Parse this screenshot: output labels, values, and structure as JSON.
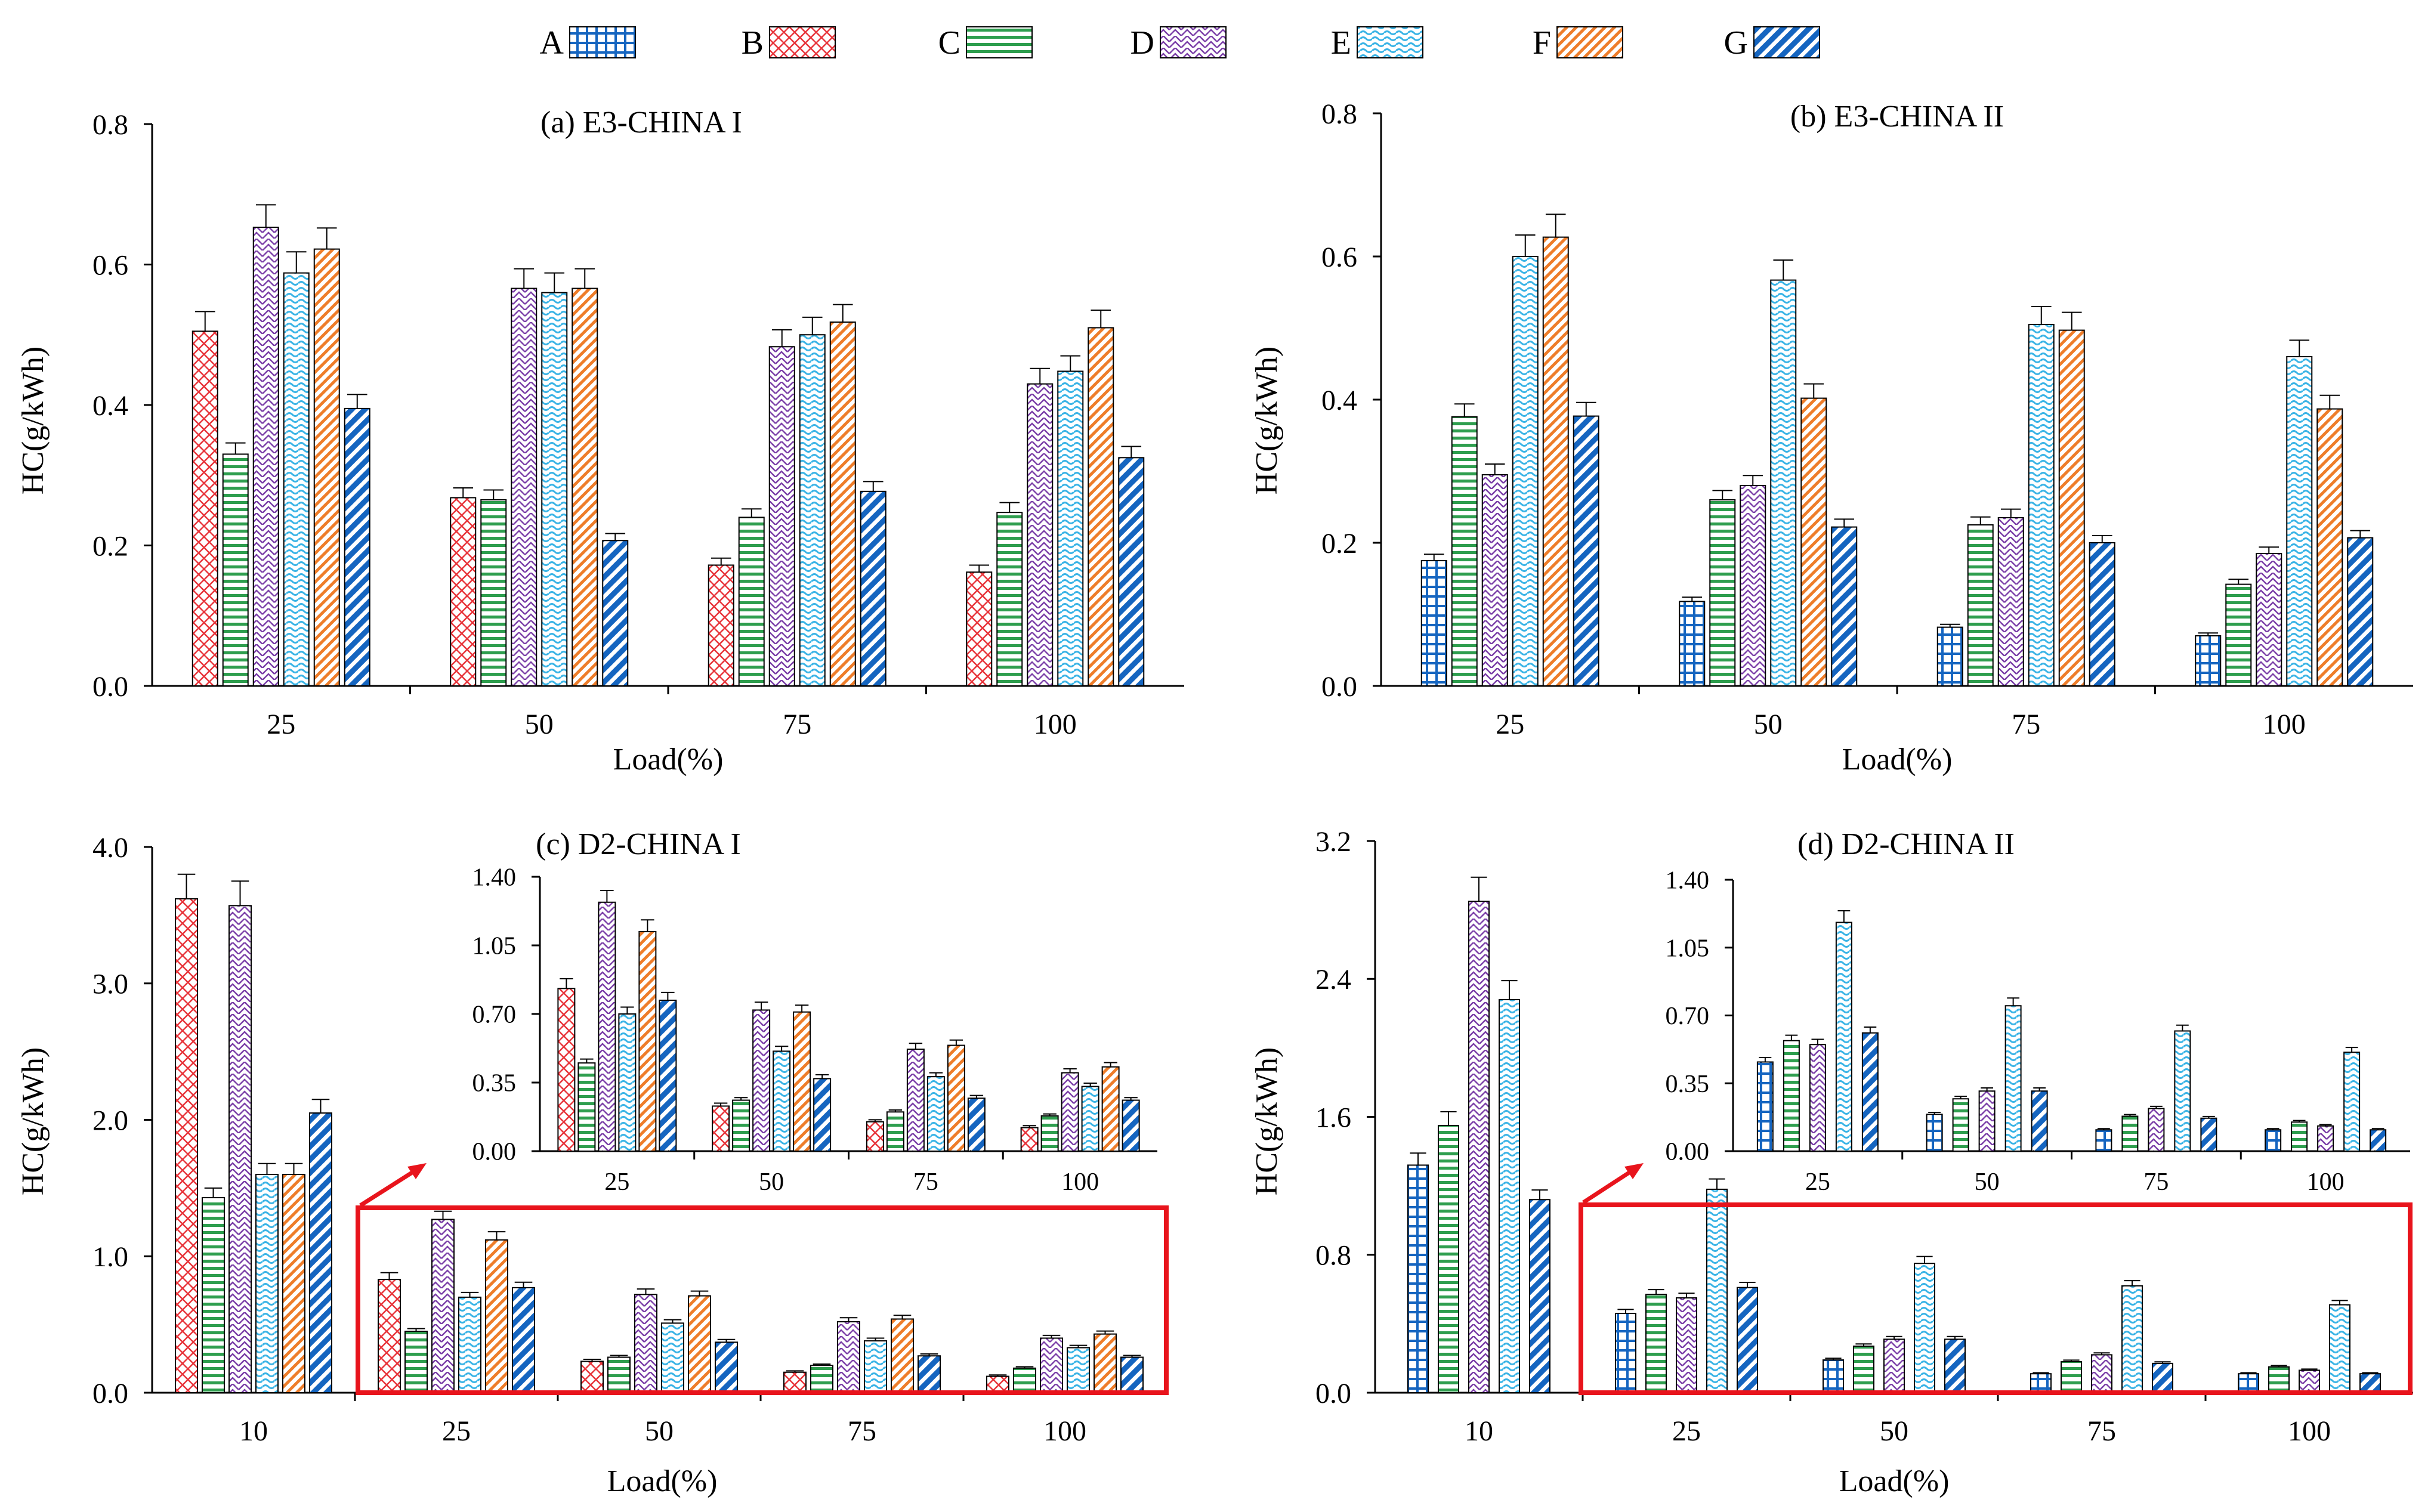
{
  "legend": [
    {
      "key": "A",
      "pattern": "grid",
      "color": "#1565c0"
    },
    {
      "key": "B",
      "pattern": "cross",
      "color": "#e8343a"
    },
    {
      "key": "C",
      "pattern": "hlines",
      "color": "#2e9e4e"
    },
    {
      "key": "D",
      "pattern": "zigzag",
      "color": "#7b3fa8"
    },
    {
      "key": "E",
      "pattern": "wave",
      "color": "#3ab4e6"
    },
    {
      "key": "F",
      "pattern": "diag",
      "color": "#ee7d2a"
    },
    {
      "key": "G",
      "pattern": "diagthick",
      "color": "#1565c0"
    }
  ],
  "chart_data": [
    {
      "type": "bar",
      "title": "(a) E3-CHINA I",
      "xlabel": "Load(%)",
      "ylabel": "HC(g/kWh)",
      "ylim": [
        0,
        0.8
      ],
      "yticks": [
        "0.0",
        "0.2",
        "0.4",
        "0.6",
        "0.8"
      ],
      "categories": [
        "25",
        "50",
        "75",
        "100"
      ],
      "series": [
        {
          "name": "B",
          "values": [
            0.505,
            0.268,
            0.172,
            0.162
          ],
          "err": [
            0.028,
            0.014,
            0.01,
            0.01
          ]
        },
        {
          "name": "C",
          "values": [
            0.33,
            0.265,
            0.24,
            0.247
          ],
          "err": [
            0.016,
            0.014,
            0.012,
            0.014
          ]
        },
        {
          "name": "D",
          "values": [
            0.653,
            0.566,
            0.483,
            0.43
          ],
          "err": [
            0.032,
            0.028,
            0.024,
            0.022
          ]
        },
        {
          "name": "E",
          "values": [
            0.588,
            0.56,
            0.5,
            0.448
          ],
          "err": [
            0.03,
            0.028,
            0.025,
            0.022
          ]
        },
        {
          "name": "F",
          "values": [
            0.622,
            0.566,
            0.518,
            0.51
          ],
          "err": [
            0.03,
            0.028,
            0.025,
            0.025
          ]
        },
        {
          "name": "G",
          "values": [
            0.395,
            0.207,
            0.277,
            0.325
          ],
          "err": [
            0.02,
            0.01,
            0.014,
            0.016
          ]
        }
      ]
    },
    {
      "type": "bar",
      "title": "(b) E3-CHINA II",
      "xlabel": "Load(%)",
      "ylabel": "HC(g/kWh)",
      "ylim": [
        0,
        0.8
      ],
      "yticks": [
        "0.0",
        "0.2",
        "0.4",
        "0.6",
        "0.8"
      ],
      "categories": [
        "25",
        "50",
        "75",
        "100"
      ],
      "series": [
        {
          "name": "A",
          "values": [
            0.175,
            0.118,
            0.082,
            0.07
          ],
          "err": [
            0.009,
            0.006,
            0.004,
            0.004
          ]
        },
        {
          "name": "C",
          "values": [
            0.376,
            0.26,
            0.225,
            0.142
          ],
          "err": [
            0.018,
            0.013,
            0.011,
            0.007
          ]
        },
        {
          "name": "D",
          "values": [
            0.295,
            0.28,
            0.235,
            0.185
          ],
          "err": [
            0.015,
            0.014,
            0.012,
            0.009
          ]
        },
        {
          "name": "E",
          "values": [
            0.6,
            0.567,
            0.505,
            0.46
          ],
          "err": [
            0.03,
            0.028,
            0.025,
            0.023
          ]
        },
        {
          "name": "F",
          "values": [
            0.627,
            0.402,
            0.497,
            0.387
          ],
          "err": [
            0.032,
            0.02,
            0.025,
            0.019
          ]
        },
        {
          "name": "G",
          "values": [
            0.377,
            0.222,
            0.2,
            0.207
          ],
          "err": [
            0.019,
            0.011,
            0.01,
            0.01
          ]
        }
      ]
    },
    {
      "type": "bar",
      "title": "(c) D2-CHINA I",
      "xlabel": "Load(%)",
      "ylabel": "HC(g/kWh)",
      "ylim": [
        0,
        4.0
      ],
      "yticks": [
        "0.0",
        "1.0",
        "2.0",
        "3.0",
        "4.0"
      ],
      "categories": [
        "10",
        "25",
        "50",
        "75",
        "100"
      ],
      "series": [
        {
          "name": "B",
          "values": [
            3.62,
            0.83,
            0.23,
            0.15,
            0.12
          ],
          "err": [
            0.18,
            0.05,
            0.015,
            0.01,
            0.01
          ]
        },
        {
          "name": "C",
          "values": [
            1.43,
            0.45,
            0.26,
            0.2,
            0.18
          ],
          "err": [
            0.07,
            0.02,
            0.013,
            0.01,
            0.01
          ]
        },
        {
          "name": "D",
          "values": [
            3.57,
            1.27,
            0.72,
            0.52,
            0.4
          ],
          "err": [
            0.18,
            0.06,
            0.04,
            0.03,
            0.02
          ]
        },
        {
          "name": "E",
          "values": [
            1.6,
            0.7,
            0.51,
            0.38,
            0.33
          ],
          "err": [
            0.08,
            0.035,
            0.025,
            0.02,
            0.017
          ]
        },
        {
          "name": "F",
          "values": [
            1.6,
            1.12,
            0.71,
            0.54,
            0.43
          ],
          "err": [
            0.08,
            0.06,
            0.035,
            0.027,
            0.022
          ]
        },
        {
          "name": "G",
          "values": [
            2.05,
            0.77,
            0.37,
            0.27,
            0.26
          ],
          "err": [
            0.1,
            0.04,
            0.02,
            0.014,
            0.013
          ]
        }
      ],
      "inset": {
        "ylim": [
          0,
          1.4
        ],
        "yticks": [
          "0.00",
          "0.35",
          "0.70",
          "1.05",
          "1.40"
        ],
        "categories": [
          "25",
          "50",
          "75",
          "100"
        ]
      }
    },
    {
      "type": "bar",
      "title": "(d) D2-CHINA II",
      "xlabel": "Load(%)",
      "ylabel": "HC(g/kWh)",
      "ylim": [
        0,
        3.2
      ],
      "yticks": [
        "0.0",
        "0.8",
        "1.6",
        "2.4",
        "3.2"
      ],
      "categories": [
        "10",
        "25",
        "50",
        "75",
        "100"
      ],
      "series": [
        {
          "name": "A",
          "values": [
            1.32,
            0.46,
            0.19,
            0.11,
            0.11
          ],
          "err": [
            0.07,
            0.023,
            0.01,
            0.006,
            0.006
          ]
        },
        {
          "name": "C",
          "values": [
            1.55,
            0.57,
            0.27,
            0.18,
            0.15
          ],
          "err": [
            0.08,
            0.028,
            0.013,
            0.009,
            0.008
          ]
        },
        {
          "name": "D",
          "values": [
            2.85,
            0.55,
            0.31,
            0.22,
            0.13
          ],
          "err": [
            0.14,
            0.027,
            0.016,
            0.011,
            0.007
          ]
        },
        {
          "name": "E",
          "values": [
            2.28,
            1.18,
            0.75,
            0.62,
            0.51
          ],
          "err": [
            0.11,
            0.06,
            0.04,
            0.03,
            0.025
          ]
        },
        {
          "name": "G",
          "values": [
            1.12,
            0.61,
            0.31,
            0.17,
            0.11
          ],
          "err": [
            0.056,
            0.03,
            0.016,
            0.009,
            0.006
          ]
        }
      ],
      "inset": {
        "ylim": [
          0,
          1.4
        ],
        "yticks": [
          "0.00",
          "0.35",
          "0.70",
          "1.05",
          "1.40"
        ],
        "categories": [
          "25",
          "50",
          "75",
          "100"
        ]
      }
    }
  ]
}
